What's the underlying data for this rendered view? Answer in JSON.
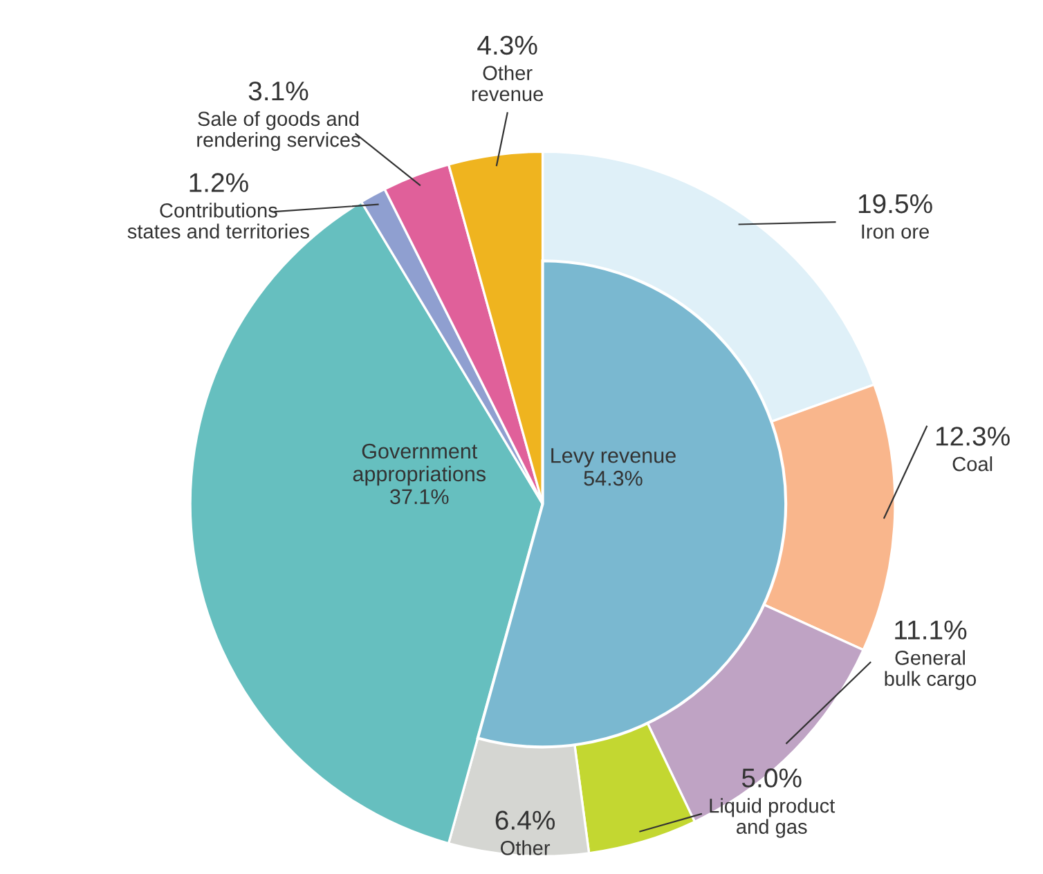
{
  "chart_data": {
    "type": "pie",
    "data_labels": true,
    "categories": [
      "Iron ore",
      "Coal",
      "General bulk cargo",
      "Liquid product and gas",
      "Other",
      "Government appropriations",
      "Contributions states and territories",
      "Sale of goods and rendering services",
      "Other revenue"
    ],
    "values": [
      19.5,
      12.3,
      11.1,
      5.0,
      6.4,
      37.1,
      1.2,
      3.1,
      4.3
    ],
    "value_labels": [
      "19.5%",
      "12.3%",
      "11.1%",
      "5.0%",
      "6.4%",
      "37.1%",
      "1.2%",
      "3.1%",
      "4.3%"
    ],
    "colors": [
      "#dff0f8",
      "#f9b68c",
      "#bfa3c4",
      "#c3d731",
      "#d5d6d2",
      "#66bfbf",
      "#8f9fd0",
      "#e0609a",
      "#efb41f"
    ],
    "annotations": [
      "Levy revenue\n54.3%"
    ]
  }
}
